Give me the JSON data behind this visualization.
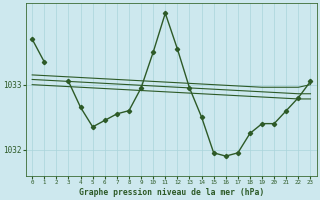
{
  "background_color": "#cde8ee",
  "grid_color": "#aad4db",
  "line_color": "#2d5a27",
  "title": "Graphe pression niveau de la mer (hPa)",
  "x_hours": [
    0,
    1,
    2,
    3,
    4,
    5,
    6,
    7,
    8,
    9,
    10,
    11,
    12,
    13,
    14,
    15,
    16,
    17,
    18,
    19,
    20,
    21,
    22,
    23
  ],
  "series1": [
    1033.7,
    1033.35,
    null,
    1033.05,
    1032.65,
    1032.35,
    1032.45,
    1032.55,
    1032.6,
    1032.95,
    1033.5,
    1034.1,
    1033.55,
    1032.95,
    1032.5,
    1031.95,
    1031.9,
    1031.95,
    1032.25,
    1032.4,
    1032.4,
    1032.6,
    1032.8,
    1033.05
  ],
  "series2_linear": [
    1033.15,
    1033.14,
    1033.13,
    1033.12,
    1033.11,
    1033.1,
    1033.09,
    1033.08,
    1033.07,
    1033.06,
    1033.05,
    1033.04,
    1033.03,
    1033.02,
    1033.01,
    1033.0,
    1032.99,
    1032.98,
    1032.97,
    1032.96,
    1032.96,
    1032.96,
    1032.96,
    1033.0
  ],
  "series3_linear": [
    1033.08,
    1033.07,
    1033.06,
    1033.05,
    1033.04,
    1033.03,
    1033.02,
    1033.01,
    1033.0,
    1032.99,
    1032.98,
    1032.97,
    1032.96,
    1032.95,
    1032.94,
    1032.93,
    1032.92,
    1032.91,
    1032.9,
    1032.89,
    1032.88,
    1032.87,
    1032.86,
    1032.86
  ],
  "series4_linear": [
    1033.0,
    1032.99,
    1032.98,
    1032.97,
    1032.96,
    1032.95,
    1032.94,
    1032.93,
    1032.92,
    1032.91,
    1032.9,
    1032.89,
    1032.88,
    1032.87,
    1032.86,
    1032.85,
    1032.84,
    1032.83,
    1032.82,
    1032.81,
    1032.8,
    1032.79,
    1032.78,
    1032.78
  ],
  "ylim": [
    1031.6,
    1034.25
  ],
  "yticks": [
    1032,
    1033
  ],
  "xlim": [
    -0.5,
    23.5
  ]
}
